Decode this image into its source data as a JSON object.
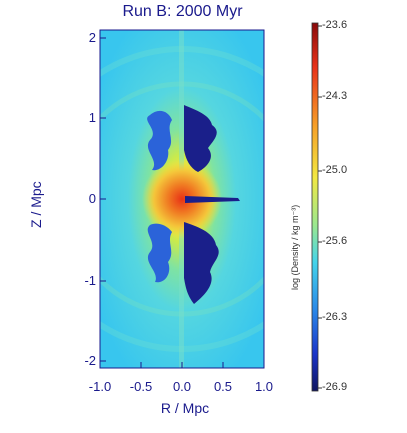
{
  "title": "Run B:  2000 Myr",
  "xlabel": "R / Mpc",
  "ylabel": "Z / Mpc",
  "x_ticks": [
    "-1.0",
    "-0.5",
    "0.0",
    "0.5",
    "1.0"
  ],
  "y_ticks": [
    "2",
    "1",
    "0",
    "-1",
    "-2"
  ],
  "colorbar": {
    "label": "log (Density / kg m⁻³)",
    "ticks": [
      "-23.6",
      "-24.3",
      "-25.0",
      "-25.6",
      "-26.3",
      "-26.9"
    ]
  },
  "colors": {
    "background": "#4fd2f0",
    "core_red": "#e8401a",
    "core_yellow": "#f4e43a",
    "lobe_dark": "#1a1f8a",
    "lobe_blue": "#2b63d9",
    "text": "#1a1a8c"
  }
}
